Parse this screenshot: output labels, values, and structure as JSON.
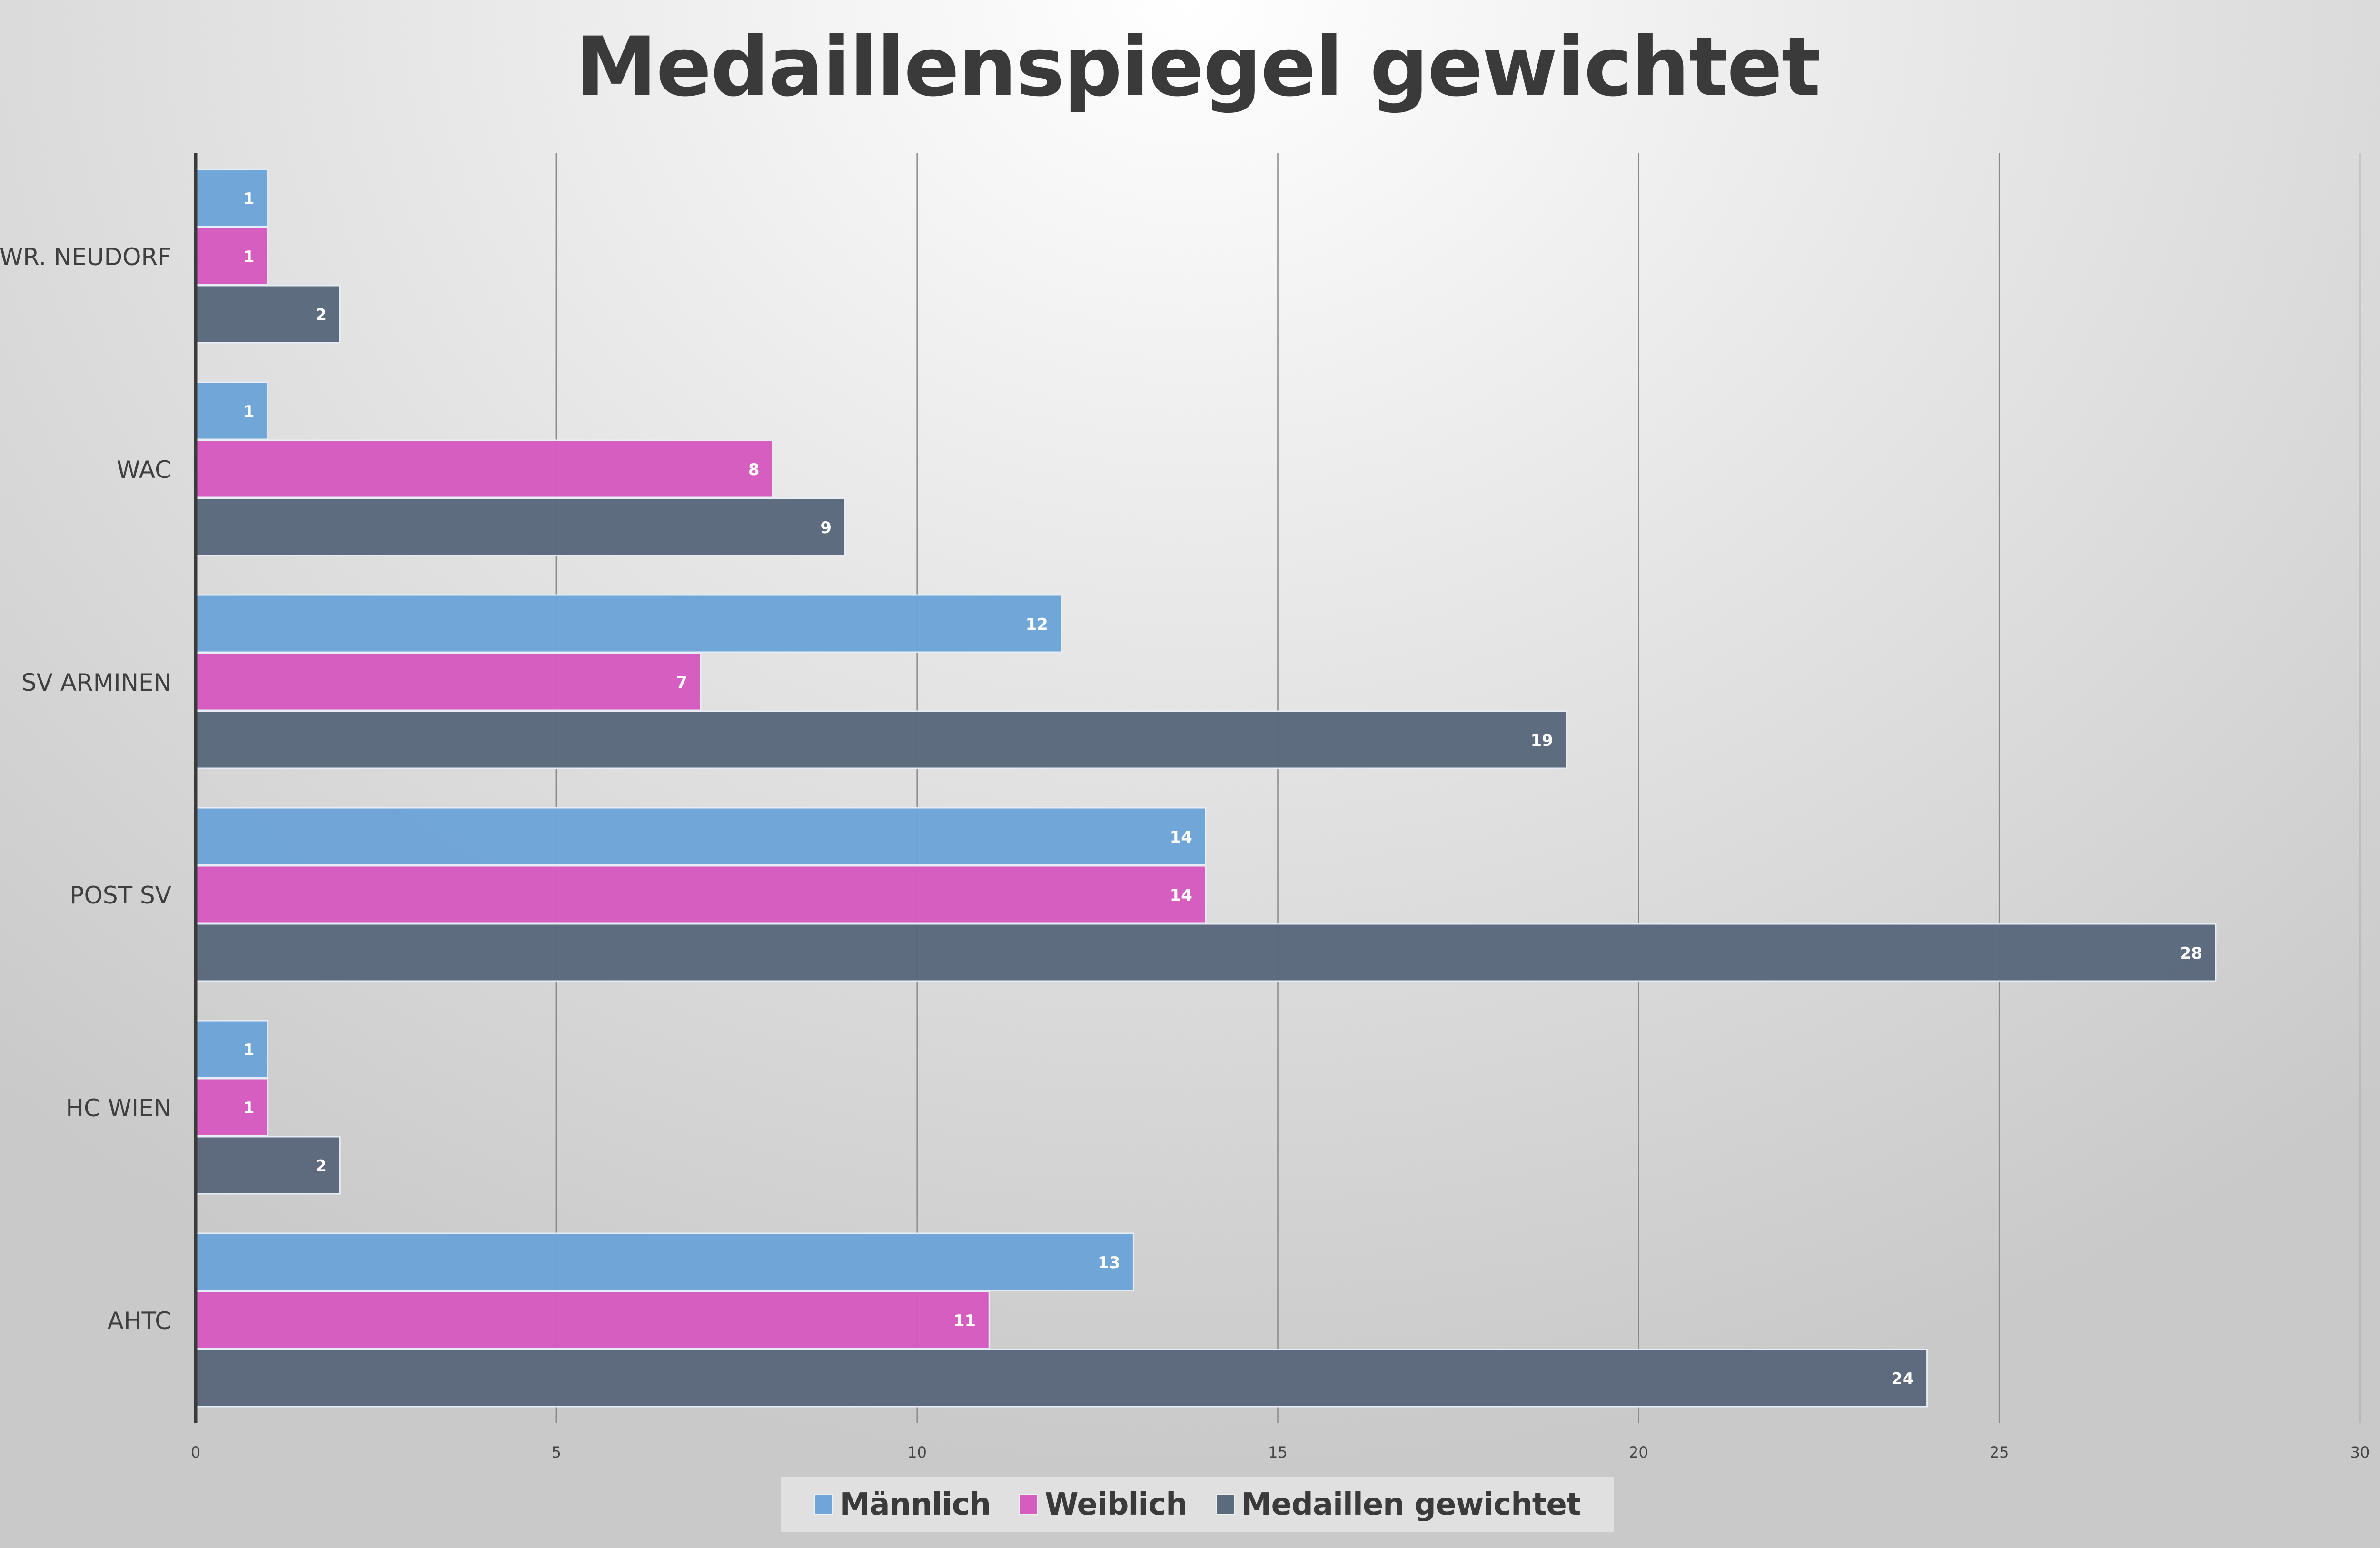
{
  "chart_data": {
    "type": "bar",
    "orientation": "horizontal",
    "title": "Medaillenspiegel gewichtet",
    "categories": [
      "WR. NEUDORF",
      "WAC",
      "SV ARMINEN",
      "POST SV",
      "HC WIEN",
      "AHTC"
    ],
    "series": [
      {
        "name": "Männlich",
        "color": "#6fa5d8",
        "values": [
          1,
          1,
          12,
          14,
          1,
          13
        ]
      },
      {
        "name": "Weiblich",
        "color": "#d65cc0",
        "values": [
          1,
          8,
          7,
          14,
          1,
          11
        ]
      },
      {
        "name": "Medaillen gewichtet",
        "color": "#5c6a7e",
        "values": [
          2,
          9,
          19,
          28,
          2,
          24
        ]
      }
    ],
    "xlim": [
      0,
      30
    ],
    "xticks": [
      0,
      5,
      10,
      15,
      20,
      25,
      30
    ],
    "grid": true,
    "legend_position": "bottom",
    "data_labels": true
  }
}
